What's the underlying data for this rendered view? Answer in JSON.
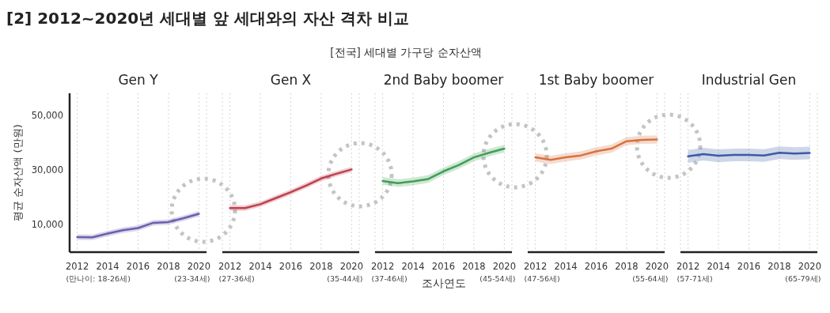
{
  "chart_data": [
    {
      "type": "other",
      "title": "[2] 2012~2020년 세대별 앞 세대와의 자산 격차 비교",
      "subtitle": "[전국] 세대별 가구당 순자산액"
    },
    {
      "type": "line",
      "title": "Gen Y",
      "ylabel": "평균 순자산액 (만원)",
      "x": [
        2012,
        2013,
        2014,
        2015,
        2016,
        2017,
        2018,
        2019,
        2020
      ],
      "xlim": [
        2011.5,
        2020.5
      ],
      "xticks": [
        2012,
        2014,
        2016,
        2018,
        2020
      ],
      "ylim": [
        0,
        58000
      ],
      "yticks": [
        {
          "value": 10000,
          "label": "10,000"
        },
        {
          "value": 30000,
          "label": "30,000"
        },
        {
          "value": 50000,
          "label": "50,000"
        }
      ],
      "grid": "x",
      "annotations": [
        "(만나이: 18-26세)",
        "(23-34세)"
      ],
      "series": [
        {
          "color": "#6a5fad",
          "values": [
            5500,
            5400,
            6800,
            8000,
            8800,
            10700,
            11000,
            12400,
            14000
          ],
          "lower": [
            4500,
            4400,
            5800,
            7000,
            7800,
            9700,
            10000,
            11400,
            13000
          ],
          "upper": [
            6500,
            6400,
            7800,
            9000,
            9800,
            11700,
            12000,
            13400,
            15000
          ]
        }
      ]
    },
    {
      "type": "line",
      "title": "Gen X",
      "x": [
        2012,
        2013,
        2014,
        2015,
        2016,
        2017,
        2018,
        2019,
        2020
      ],
      "xlim": [
        2011.5,
        2020.5
      ],
      "xticks": [
        2012,
        2014,
        2016,
        2018,
        2020
      ],
      "ylim": [
        0,
        58000
      ],
      "tick_labels": "x",
      "grid": "x",
      "annotations": [
        "(27-36세)",
        "(35-44세)"
      ],
      "series": [
        {
          "color": "#c0404f",
          "values": [
            16100,
            16100,
            17500,
            19700,
            21900,
            24300,
            26900,
            28600,
            30200
          ],
          "lower": [
            15100,
            15100,
            16500,
            18700,
            20900,
            23300,
            25900,
            27600,
            29200
          ],
          "upper": [
            17100,
            17100,
            18500,
            20700,
            22900,
            25300,
            27900,
            29600,
            31200
          ]
        }
      ]
    },
    {
      "type": "line",
      "title": "2nd Baby boomer",
      "xlabel": "조사연도",
      "x": [
        2012,
        2013,
        2014,
        2015,
        2016,
        2017,
        2018,
        2019,
        2020
      ],
      "xlim": [
        2011.5,
        2020.5
      ],
      "xticks": [
        2012,
        2014,
        2016,
        2018,
        2020
      ],
      "ylim": [
        0,
        58000
      ],
      "tick_labels": "x",
      "grid": "x",
      "annotations": [
        "(37-46세)",
        "(45-54세)"
      ],
      "series": [
        {
          "color": "#3f9e55",
          "values": [
            26000,
            25200,
            25800,
            26700,
            29500,
            31800,
            34600,
            36300,
            37800
          ],
          "lower": [
            24600,
            23800,
            24400,
            25300,
            28100,
            30400,
            33200,
            34900,
            36400
          ],
          "upper": [
            27400,
            26600,
            27200,
            28100,
            30900,
            33200,
            36000,
            37700,
            39200
          ]
        }
      ]
    },
    {
      "type": "line",
      "title": "1st Baby boomer",
      "x": [
        2012,
        2013,
        2014,
        2015,
        2016,
        2017,
        2018,
        2019,
        2020
      ],
      "xlim": [
        2011.5,
        2020.5
      ],
      "xticks": [
        2012,
        2014,
        2016,
        2018,
        2020
      ],
      "ylim": [
        0,
        58000
      ],
      "tick_labels": "x",
      "grid": "x",
      "annotations": [
        "(47-56세)",
        "(55-64세)"
      ],
      "series": [
        {
          "color": "#d9713f",
          "values": [
            34600,
            33700,
            34600,
            35300,
            36800,
            37800,
            40500,
            41000,
            41100
          ],
          "lower": [
            33100,
            32200,
            33100,
            33800,
            35300,
            36300,
            39000,
            39500,
            39600
          ],
          "upper": [
            36100,
            35200,
            36100,
            36800,
            38300,
            39300,
            42000,
            42500,
            42600
          ]
        }
      ]
    },
    {
      "type": "line",
      "title": "Industrial Gen",
      "x": [
        2012,
        2013,
        2014,
        2015,
        2016,
        2017,
        2018,
        2019,
        2020
      ],
      "xlim": [
        2011.5,
        2020.5
      ],
      "xticks": [
        2012,
        2014,
        2016,
        2018,
        2020
      ],
      "ylim": [
        0,
        58000
      ],
      "tick_labels": "x",
      "grid": "x",
      "annotations": [
        "(57-71세)",
        "(65-79세)"
      ],
      "series": [
        {
          "color": "#3b5ba5",
          "values": [
            35000,
            35800,
            35200,
            35500,
            35500,
            35300,
            36300,
            36000,
            36200
          ],
          "lower": [
            32600,
            33500,
            32800,
            33200,
            33200,
            33000,
            34000,
            33700,
            33900
          ],
          "upper": [
            37300,
            38100,
            37500,
            37800,
            37800,
            37600,
            38600,
            38300,
            38500
          ]
        }
      ]
    }
  ]
}
